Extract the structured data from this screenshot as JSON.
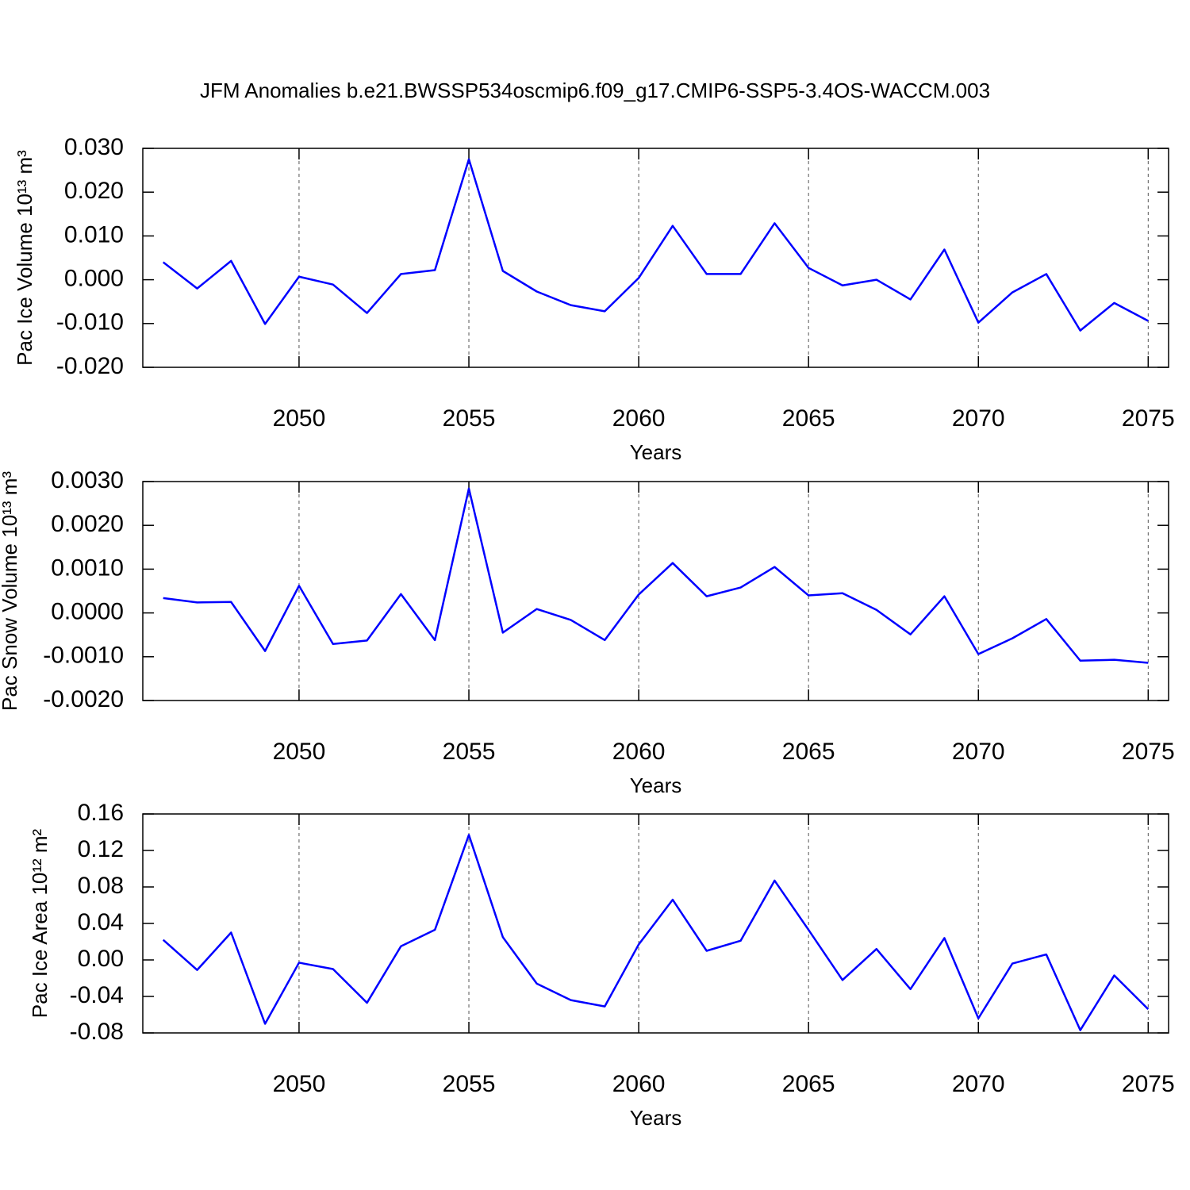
{
  "title": "JFM Anomalies b.e21.BWSSP534oscmip6.f09_g17.CMIP6-SSP5-3.4OS-WACCM.003",
  "chart_data": [
    {
      "type": "line",
      "ylabel": "Pac Ice Volume 10¹³ m³",
      "xlabel": "Years",
      "x": [
        2046,
        2047,
        2048,
        2049,
        2050,
        2051,
        2052,
        2053,
        2054,
        2055,
        2056,
        2057,
        2058,
        2059,
        2060,
        2061,
        2062,
        2063,
        2064,
        2065,
        2066,
        2067,
        2068,
        2069,
        2070,
        2071,
        2072,
        2073,
        2074,
        2075
      ],
      "values": [
        0.004,
        -0.002,
        0.0043,
        -0.0101,
        0.0007,
        -0.0011,
        -0.0076,
        0.0013,
        0.0022,
        0.0275,
        0.002,
        -0.0027,
        -0.0058,
        -0.0072,
        0.0004,
        0.0123,
        0.0013,
        0.0013,
        0.0129,
        0.0027,
        -0.0013,
        0.0,
        -0.0045,
        0.0069,
        -0.0098,
        -0.0029,
        0.0013,
        -0.0116,
        -0.0053,
        -0.0094
      ],
      "color": "#0000ff",
      "xlim": [
        2045.4,
        2075.6
      ],
      "xticks": [
        2050,
        2055,
        2060,
        2065,
        2070,
        2075
      ],
      "ylim": [
        -0.02,
        0.03
      ],
      "yticks": [
        {
          "value": 0.03,
          "label": "0.030"
        },
        {
          "value": 0.02,
          "label": "0.020"
        },
        {
          "value": 0.01,
          "label": "0.010"
        },
        {
          "value": 0,
          "label": "0.000"
        },
        {
          "value": -0.01,
          "label": "-0.010"
        },
        {
          "value": -0.02,
          "label": "-0.020"
        }
      ],
      "grid": true
    },
    {
      "type": "line",
      "ylabel": "Pac Snow Volume 10¹³ m³",
      "xlabel": "Years",
      "x": [
        2046,
        2047,
        2048,
        2049,
        2050,
        2051,
        2052,
        2053,
        2054,
        2055,
        2056,
        2057,
        2058,
        2059,
        2060,
        2061,
        2062,
        2063,
        2064,
        2065,
        2066,
        2067,
        2068,
        2069,
        2070,
        2071,
        2072,
        2073,
        2074,
        2075
      ],
      "values": [
        0.00034,
        0.00024,
        0.00025,
        -0.00087,
        0.00062,
        -0.00071,
        -0.00063,
        0.00043,
        -0.00062,
        0.00284,
        -0.00045,
        9e-05,
        -0.00016,
        -0.00062,
        0.00042,
        0.00114,
        0.00038,
        0.00058,
        0.00105,
        0.0004,
        0.00045,
        7e-05,
        -0.00049,
        0.00038,
        -0.00094,
        -0.00058,
        -0.00014,
        -0.00109,
        -0.00107,
        -0.00114
      ],
      "color": "#0000ff",
      "xlim": [
        2045.4,
        2075.6
      ],
      "xticks": [
        2050,
        2055,
        2060,
        2065,
        2070,
        2075
      ],
      "ylim": [
        -0.002,
        0.003
      ],
      "yticks": [
        {
          "value": 0.003,
          "label": "0.0030"
        },
        {
          "value": 0.002,
          "label": "0.0020"
        },
        {
          "value": 0.001,
          "label": "0.0010"
        },
        {
          "value": 0,
          "label": "0.0000"
        },
        {
          "value": -0.001,
          "label": "-0.0010"
        },
        {
          "value": -0.002,
          "label": "-0.0020"
        }
      ],
      "grid": true
    },
    {
      "type": "line",
      "ylabel": "Pac Ice Area 10¹² m²",
      "xlabel": "Years",
      "x": [
        2046,
        2047,
        2048,
        2049,
        2050,
        2051,
        2052,
        2053,
        2054,
        2055,
        2056,
        2057,
        2058,
        2059,
        2060,
        2061,
        2062,
        2063,
        2064,
        2065,
        2066,
        2067,
        2068,
        2069,
        2070,
        2071,
        2072,
        2073,
        2074,
        2075
      ],
      "values": [
        0.022,
        -0.011,
        0.03,
        -0.07,
        -0.003,
        -0.01,
        -0.047,
        0.015,
        0.033,
        0.137,
        0.025,
        -0.026,
        -0.044,
        -0.051,
        0.017,
        0.066,
        0.01,
        0.021,
        0.087,
        0.033,
        -0.022,
        0.012,
        -0.032,
        0.024,
        -0.064,
        -0.004,
        0.006,
        -0.077,
        -0.017,
        -0.054
      ],
      "color": "#0000ff",
      "xlim": [
        2045.4,
        2075.6
      ],
      "xticks": [
        2050,
        2055,
        2060,
        2065,
        2070,
        2075
      ],
      "ylim": [
        -0.08,
        0.16
      ],
      "yticks": [
        0.16,
        0.12,
        0.08,
        0.04,
        {
          "value": 0,
          "label": "0.00"
        },
        -0.04,
        -0.08
      ],
      "grid": true
    }
  ]
}
